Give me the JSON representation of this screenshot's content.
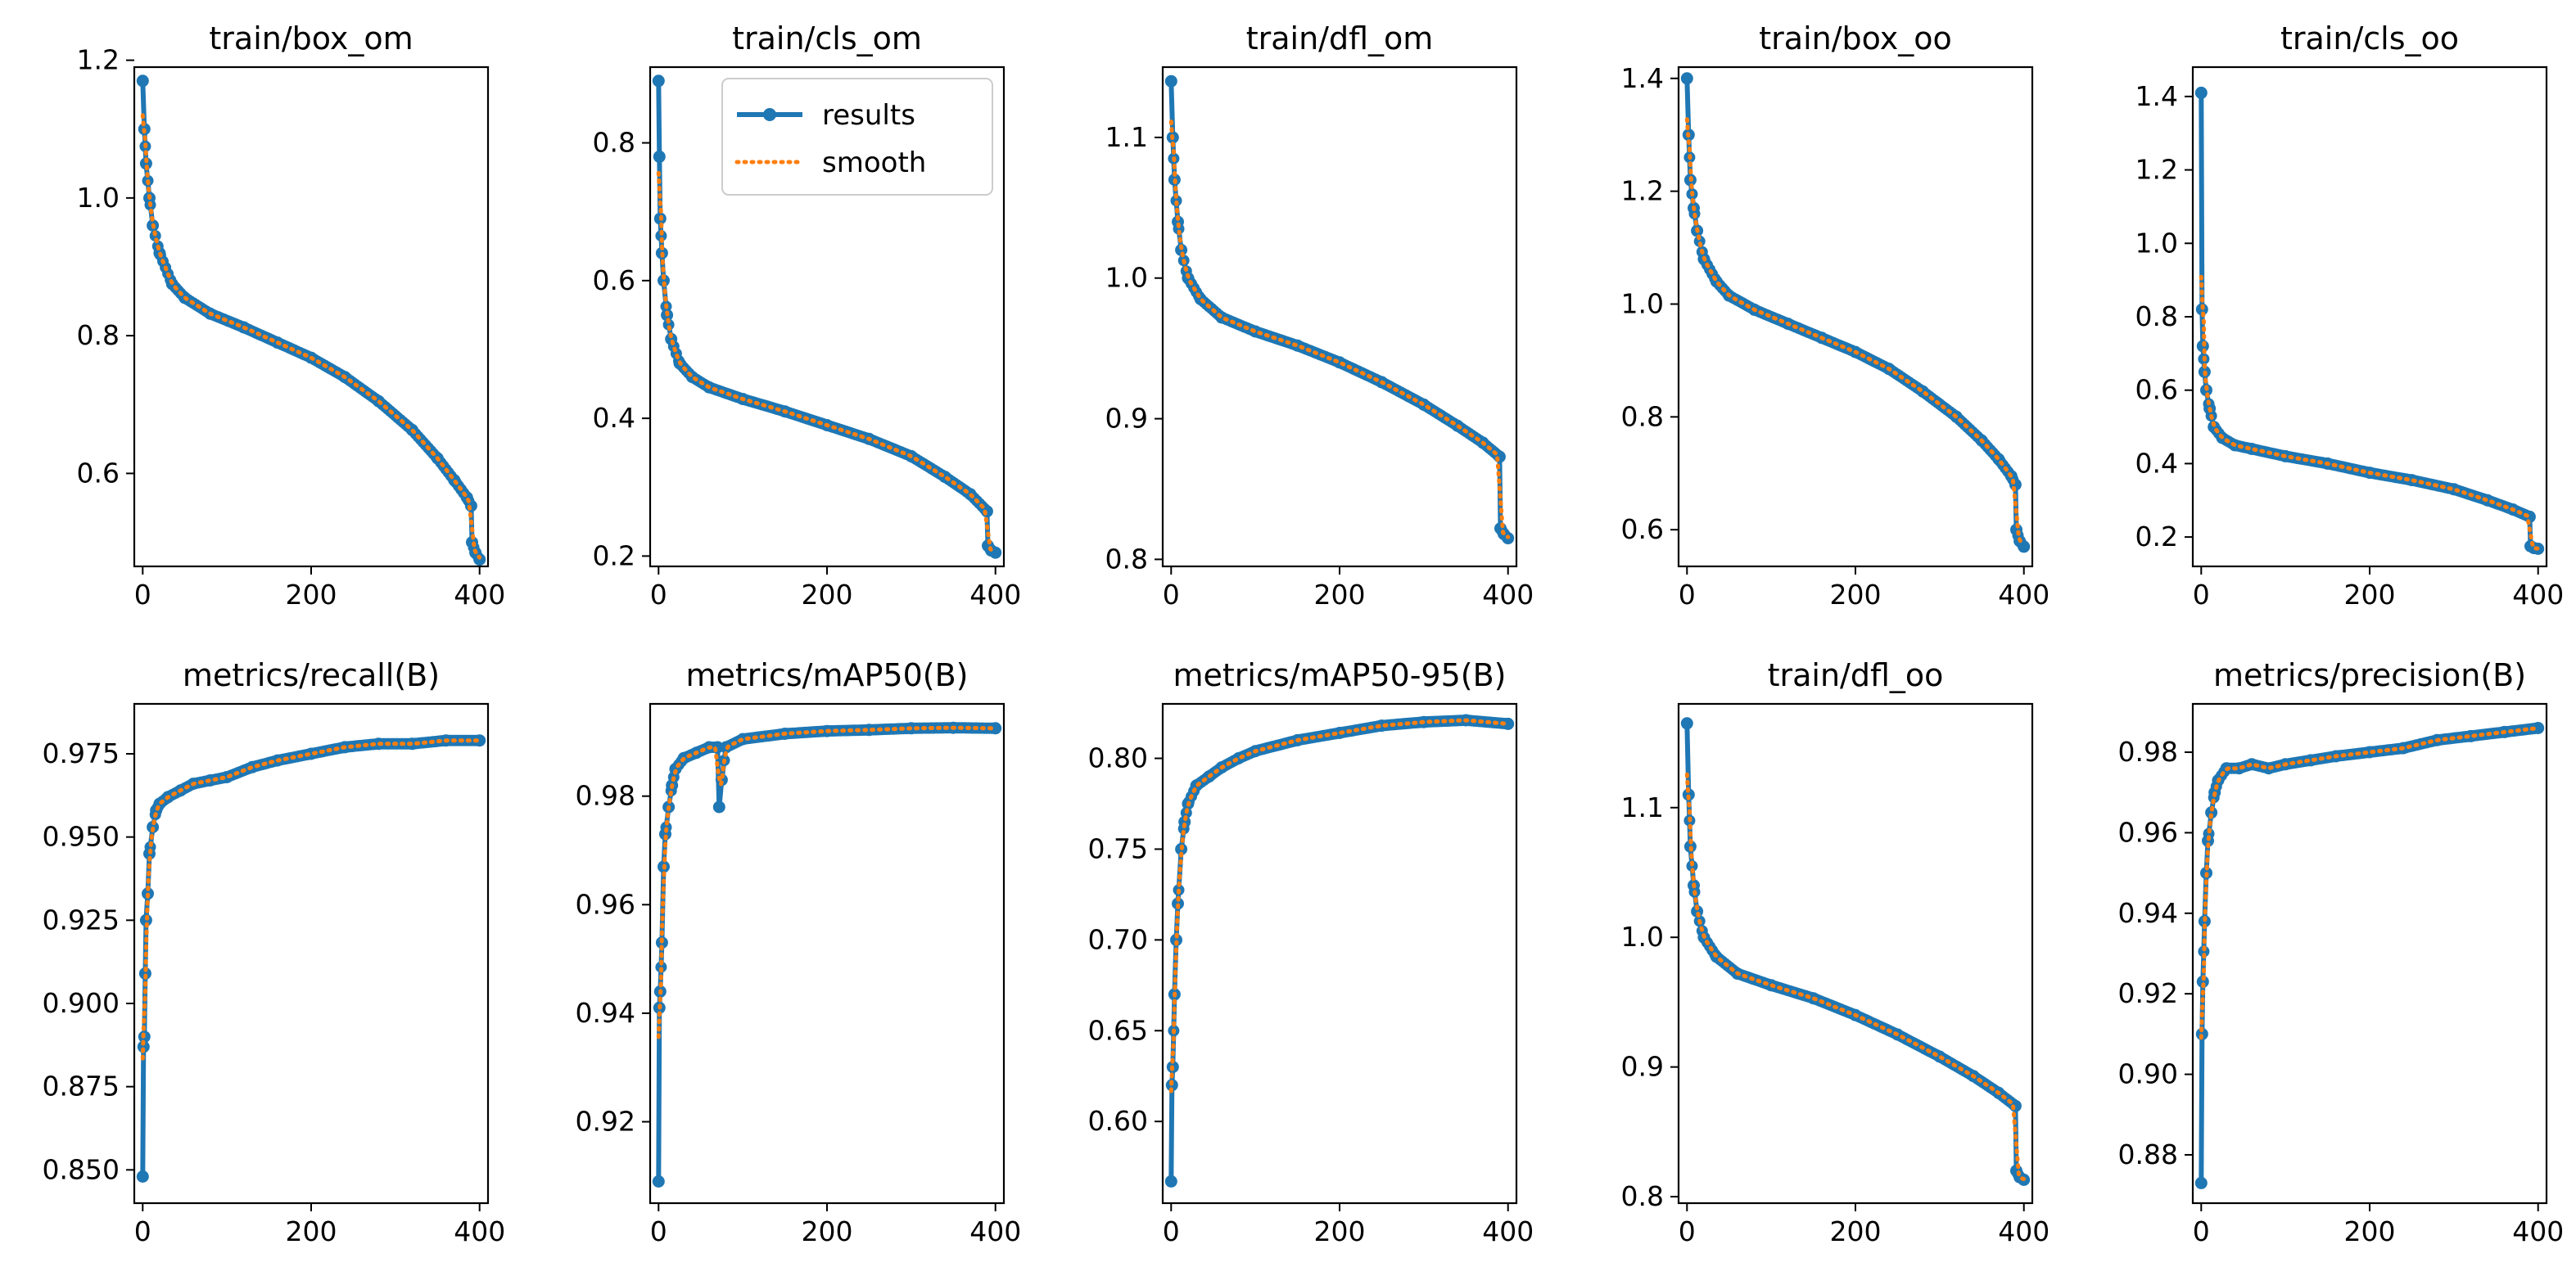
{
  "figure": {
    "legend": {
      "results": "results",
      "smooth": "smooth"
    }
  },
  "colors": {
    "results": "#1f77b4",
    "smooth": "#ff7f0e"
  },
  "chart_data": [
    {
      "type": "line",
      "title": "train/box_om",
      "xlim": [
        -10,
        410
      ],
      "ylim": [
        0.465,
        1.19
      ],
      "xticks": [
        0,
        200,
        400
      ],
      "xtick_labels": [
        "0",
        "200",
        "400"
      ],
      "yticks": [
        0.6,
        0.8,
        1.0,
        1.2
      ],
      "ytick_labels": [
        "0.6",
        "0.8",
        "1.0",
        "1.2"
      ],
      "curve": [
        [
          0,
          1.17
        ],
        [
          2,
          1.1
        ],
        [
          4,
          1.05
        ],
        [
          8,
          1.0
        ],
        [
          12,
          0.96
        ],
        [
          20,
          0.92
        ],
        [
          35,
          0.875
        ],
        [
          50,
          0.855
        ],
        [
          80,
          0.832
        ],
        [
          120,
          0.812
        ],
        [
          160,
          0.79
        ],
        [
          200,
          0.768
        ],
        [
          240,
          0.74
        ],
        [
          280,
          0.705
        ],
        [
          320,
          0.663
        ],
        [
          350,
          0.622
        ],
        [
          370,
          0.59
        ],
        [
          385,
          0.565
        ],
        [
          390,
          0.553
        ],
        [
          391,
          0.5
        ],
        [
          395,
          0.485
        ],
        [
          400,
          0.475
        ]
      ],
      "legend": false
    },
    {
      "type": "line",
      "title": "train/cls_om",
      "xlim": [
        -10,
        410
      ],
      "ylim": [
        0.185,
        0.91
      ],
      "xticks": [
        0,
        200,
        400
      ],
      "xtick_labels": [
        "0",
        "200",
        "400"
      ],
      "yticks": [
        0.2,
        0.4,
        0.6,
        0.8
      ],
      "ytick_labels": [
        "0.2",
        "0.4",
        "0.6",
        "0.8"
      ],
      "curve": [
        [
          0,
          0.89
        ],
        [
          1,
          0.78
        ],
        [
          2,
          0.69
        ],
        [
          4,
          0.64
        ],
        [
          6,
          0.6
        ],
        [
          10,
          0.55
        ],
        [
          15,
          0.515
        ],
        [
          25,
          0.48
        ],
        [
          40,
          0.46
        ],
        [
          60,
          0.445
        ],
        [
          100,
          0.428
        ],
        [
          150,
          0.41
        ],
        [
          200,
          0.39
        ],
        [
          250,
          0.37
        ],
        [
          300,
          0.345
        ],
        [
          340,
          0.315
        ],
        [
          370,
          0.29
        ],
        [
          390,
          0.265
        ],
        [
          391,
          0.215
        ],
        [
          395,
          0.208
        ],
        [
          400,
          0.205
        ]
      ],
      "legend": true
    },
    {
      "type": "line",
      "title": "train/dfl_om",
      "xlim": [
        -10,
        410
      ],
      "ylim": [
        0.795,
        1.15
      ],
      "xticks": [
        0,
        200,
        400
      ],
      "xtick_labels": [
        "0",
        "200",
        "400"
      ],
      "yticks": [
        0.8,
        0.9,
        1.0,
        1.1
      ],
      "ytick_labels": [
        "0.8",
        "0.9",
        "1.0",
        "1.1"
      ],
      "curve": [
        [
          0,
          1.14
        ],
        [
          2,
          1.1
        ],
        [
          4,
          1.07
        ],
        [
          8,
          1.04
        ],
        [
          12,
          1.02
        ],
        [
          20,
          1.0
        ],
        [
          35,
          0.985
        ],
        [
          60,
          0.972
        ],
        [
          100,
          0.962
        ],
        [
          150,
          0.952
        ],
        [
          200,
          0.94
        ],
        [
          250,
          0.926
        ],
        [
          300,
          0.91
        ],
        [
          340,
          0.895
        ],
        [
          370,
          0.883
        ],
        [
          390,
          0.873
        ],
        [
          391,
          0.822
        ],
        [
          395,
          0.818
        ],
        [
          400,
          0.815
        ]
      ],
      "legend": false
    },
    {
      "type": "line",
      "title": "train/box_oo",
      "xlim": [
        -10,
        410
      ],
      "ylim": [
        0.535,
        1.42
      ],
      "xticks": [
        0,
        200,
        400
      ],
      "xtick_labels": [
        "0",
        "200",
        "400"
      ],
      "yticks": [
        0.6,
        0.8,
        1.0,
        1.2,
        1.4
      ],
      "ytick_labels": [
        "0.6",
        "0.8",
        "1.0",
        "1.2",
        "1.4"
      ],
      "curve": [
        [
          0,
          1.4
        ],
        [
          2,
          1.3
        ],
        [
          4,
          1.22
        ],
        [
          8,
          1.17
        ],
        [
          12,
          1.13
        ],
        [
          20,
          1.08
        ],
        [
          35,
          1.04
        ],
        [
          50,
          1.015
        ],
        [
          80,
          0.99
        ],
        [
          120,
          0.965
        ],
        [
          160,
          0.94
        ],
        [
          200,
          0.915
        ],
        [
          240,
          0.885
        ],
        [
          280,
          0.845
        ],
        [
          320,
          0.8
        ],
        [
          350,
          0.758
        ],
        [
          370,
          0.725
        ],
        [
          385,
          0.695
        ],
        [
          390,
          0.68
        ],
        [
          391,
          0.6
        ],
        [
          395,
          0.58
        ],
        [
          400,
          0.57
        ]
      ],
      "legend": false
    },
    {
      "type": "line",
      "title": "train/cls_oo",
      "xlim": [
        -10,
        410
      ],
      "ylim": [
        0.12,
        1.48
      ],
      "xticks": [
        0,
        200,
        400
      ],
      "xtick_labels": [
        "0",
        "200",
        "400"
      ],
      "yticks": [
        0.2,
        0.4,
        0.6,
        0.8,
        1.0,
        1.2,
        1.4
      ],
      "ytick_labels": [
        "0.2",
        "0.4",
        "0.6",
        "0.8",
        "1.0",
        "1.2",
        "1.4"
      ],
      "curve": [
        [
          0,
          1.41
        ],
        [
          1,
          0.82
        ],
        [
          2,
          0.72
        ],
        [
          4,
          0.65
        ],
        [
          6,
          0.6
        ],
        [
          10,
          0.55
        ],
        [
          15,
          0.5
        ],
        [
          25,
          0.47
        ],
        [
          40,
          0.45
        ],
        [
          60,
          0.44
        ],
        [
          100,
          0.42
        ],
        [
          150,
          0.4
        ],
        [
          200,
          0.375
        ],
        [
          250,
          0.355
        ],
        [
          300,
          0.33
        ],
        [
          340,
          0.3
        ],
        [
          370,
          0.275
        ],
        [
          390,
          0.255
        ],
        [
          391,
          0.175
        ],
        [
          395,
          0.17
        ],
        [
          400,
          0.168
        ]
      ],
      "legend": false
    },
    {
      "type": "line",
      "title": "metrics/recall(B)",
      "xlim": [
        -10,
        410
      ],
      "ylim": [
        0.84,
        0.99
      ],
      "xticks": [
        0,
        200,
        400
      ],
      "xtick_labels": [
        "0",
        "200",
        "400"
      ],
      "yticks": [
        0.85,
        0.875,
        0.9,
        0.925,
        0.95,
        0.975
      ],
      "ytick_labels": [
        "0.850",
        "0.875",
        "0.900",
        "0.925",
        "0.950",
        "0.975"
      ],
      "curve": [
        [
          0,
          0.848
        ],
        [
          1,
          0.887
        ],
        [
          2,
          0.89
        ],
        [
          3,
          0.909
        ],
        [
          4,
          0.925
        ],
        [
          6,
          0.933
        ],
        [
          8,
          0.945
        ],
        [
          12,
          0.953
        ],
        [
          16,
          0.958
        ],
        [
          20,
          0.96
        ],
        [
          30,
          0.962
        ],
        [
          45,
          0.964
        ],
        [
          60,
          0.966
        ],
        [
          80,
          0.967
        ],
        [
          100,
          0.968
        ],
        [
          130,
          0.971
        ],
        [
          160,
          0.973
        ],
        [
          200,
          0.975
        ],
        [
          240,
          0.977
        ],
        [
          280,
          0.978
        ],
        [
          320,
          0.978
        ],
        [
          360,
          0.979
        ],
        [
          400,
          0.979
        ]
      ],
      "legend": false
    },
    {
      "type": "line",
      "title": "metrics/mAP50(B)",
      "xlim": [
        -10,
        410
      ],
      "ylim": [
        0.905,
        0.997
      ],
      "xticks": [
        0,
        200,
        400
      ],
      "xtick_labels": [
        "0",
        "200",
        "400"
      ],
      "yticks": [
        0.92,
        0.94,
        0.96,
        0.98
      ],
      "ytick_labels": [
        "0.92",
        "0.94",
        "0.96",
        "0.98"
      ],
      "curve": [
        [
          0,
          0.909
        ],
        [
          1,
          0.941
        ],
        [
          2,
          0.944
        ],
        [
          4,
          0.953
        ],
        [
          6,
          0.967
        ],
        [
          8,
          0.973
        ],
        [
          12,
          0.978
        ],
        [
          16,
          0.982
        ],
        [
          20,
          0.985
        ],
        [
          30,
          0.987
        ],
        [
          45,
          0.988
        ],
        [
          60,
          0.989
        ],
        [
          70,
          0.989
        ],
        [
          72,
          0.978
        ],
        [
          75,
          0.983
        ],
        [
          80,
          0.989
        ],
        [
          100,
          0.9905
        ],
        [
          150,
          0.9915
        ],
        [
          200,
          0.992
        ],
        [
          250,
          0.9922
        ],
        [
          300,
          0.9925
        ],
        [
          350,
          0.9926
        ],
        [
          400,
          0.9925
        ]
      ],
      "legend": false
    },
    {
      "type": "line",
      "title": "metrics/mAP50-95(B)",
      "xlim": [
        -10,
        410
      ],
      "ylim": [
        0.555,
        0.83
      ],
      "xticks": [
        0,
        200,
        400
      ],
      "xtick_labels": [
        "0",
        "200",
        "400"
      ],
      "yticks": [
        0.6,
        0.65,
        0.7,
        0.75,
        0.8
      ],
      "ytick_labels": [
        "0.60",
        "0.65",
        "0.70",
        "0.75",
        "0.80"
      ],
      "curve": [
        [
          0,
          0.567
        ],
        [
          1,
          0.62
        ],
        [
          2,
          0.63
        ],
        [
          4,
          0.67
        ],
        [
          6,
          0.7
        ],
        [
          8,
          0.72
        ],
        [
          12,
          0.75
        ],
        [
          16,
          0.765
        ],
        [
          20,
          0.775
        ],
        [
          30,
          0.785
        ],
        [
          45,
          0.79
        ],
        [
          60,
          0.795
        ],
        [
          80,
          0.8
        ],
        [
          100,
          0.804
        ],
        [
          150,
          0.81
        ],
        [
          200,
          0.814
        ],
        [
          250,
          0.818
        ],
        [
          300,
          0.82
        ],
        [
          350,
          0.821
        ],
        [
          400,
          0.819
        ]
      ],
      "legend": false
    },
    {
      "type": "line",
      "title": "train/dfl_oo",
      "xlim": [
        -10,
        410
      ],
      "ylim": [
        0.795,
        1.18
      ],
      "xticks": [
        0,
        200,
        400
      ],
      "xtick_labels": [
        "0",
        "200",
        "400"
      ],
      "yticks": [
        0.8,
        0.9,
        1.0,
        1.1
      ],
      "ytick_labels": [
        "0.8",
        "0.9",
        "1.0",
        "1.1"
      ],
      "curve": [
        [
          0,
          1.165
        ],
        [
          2,
          1.11
        ],
        [
          4,
          1.07
        ],
        [
          8,
          1.04
        ],
        [
          12,
          1.02
        ],
        [
          20,
          1.0
        ],
        [
          35,
          0.985
        ],
        [
          60,
          0.972
        ],
        [
          100,
          0.963
        ],
        [
          150,
          0.953
        ],
        [
          200,
          0.94
        ],
        [
          250,
          0.925
        ],
        [
          300,
          0.908
        ],
        [
          340,
          0.893
        ],
        [
          370,
          0.88
        ],
        [
          390,
          0.87
        ],
        [
          391,
          0.82
        ],
        [
          395,
          0.815
        ],
        [
          400,
          0.813
        ]
      ],
      "legend": false
    },
    {
      "type": "line",
      "title": "metrics/precision(B)",
      "xlim": [
        -10,
        410
      ],
      "ylim": [
        0.868,
        0.992
      ],
      "xticks": [
        0,
        200,
        400
      ],
      "xtick_labels": [
        "0",
        "200",
        "400"
      ],
      "yticks": [
        0.88,
        0.9,
        0.92,
        0.94,
        0.96,
        0.98
      ],
      "ytick_labels": [
        "0.88",
        "0.90",
        "0.92",
        "0.94",
        "0.96",
        "0.98"
      ],
      "curve": [
        [
          0,
          0.873
        ],
        [
          1,
          0.91
        ],
        [
          2,
          0.923
        ],
        [
          4,
          0.938
        ],
        [
          6,
          0.95
        ],
        [
          8,
          0.958
        ],
        [
          12,
          0.965
        ],
        [
          16,
          0.97
        ],
        [
          20,
          0.973
        ],
        [
          30,
          0.976
        ],
        [
          45,
          0.976
        ],
        [
          60,
          0.977
        ],
        [
          80,
          0.976
        ],
        [
          100,
          0.977
        ],
        [
          130,
          0.978
        ],
        [
          160,
          0.979
        ],
        [
          200,
          0.98
        ],
        [
          240,
          0.981
        ],
        [
          280,
          0.983
        ],
        [
          320,
          0.984
        ],
        [
          360,
          0.985
        ],
        [
          400,
          0.986
        ]
      ],
      "legend": false
    }
  ]
}
